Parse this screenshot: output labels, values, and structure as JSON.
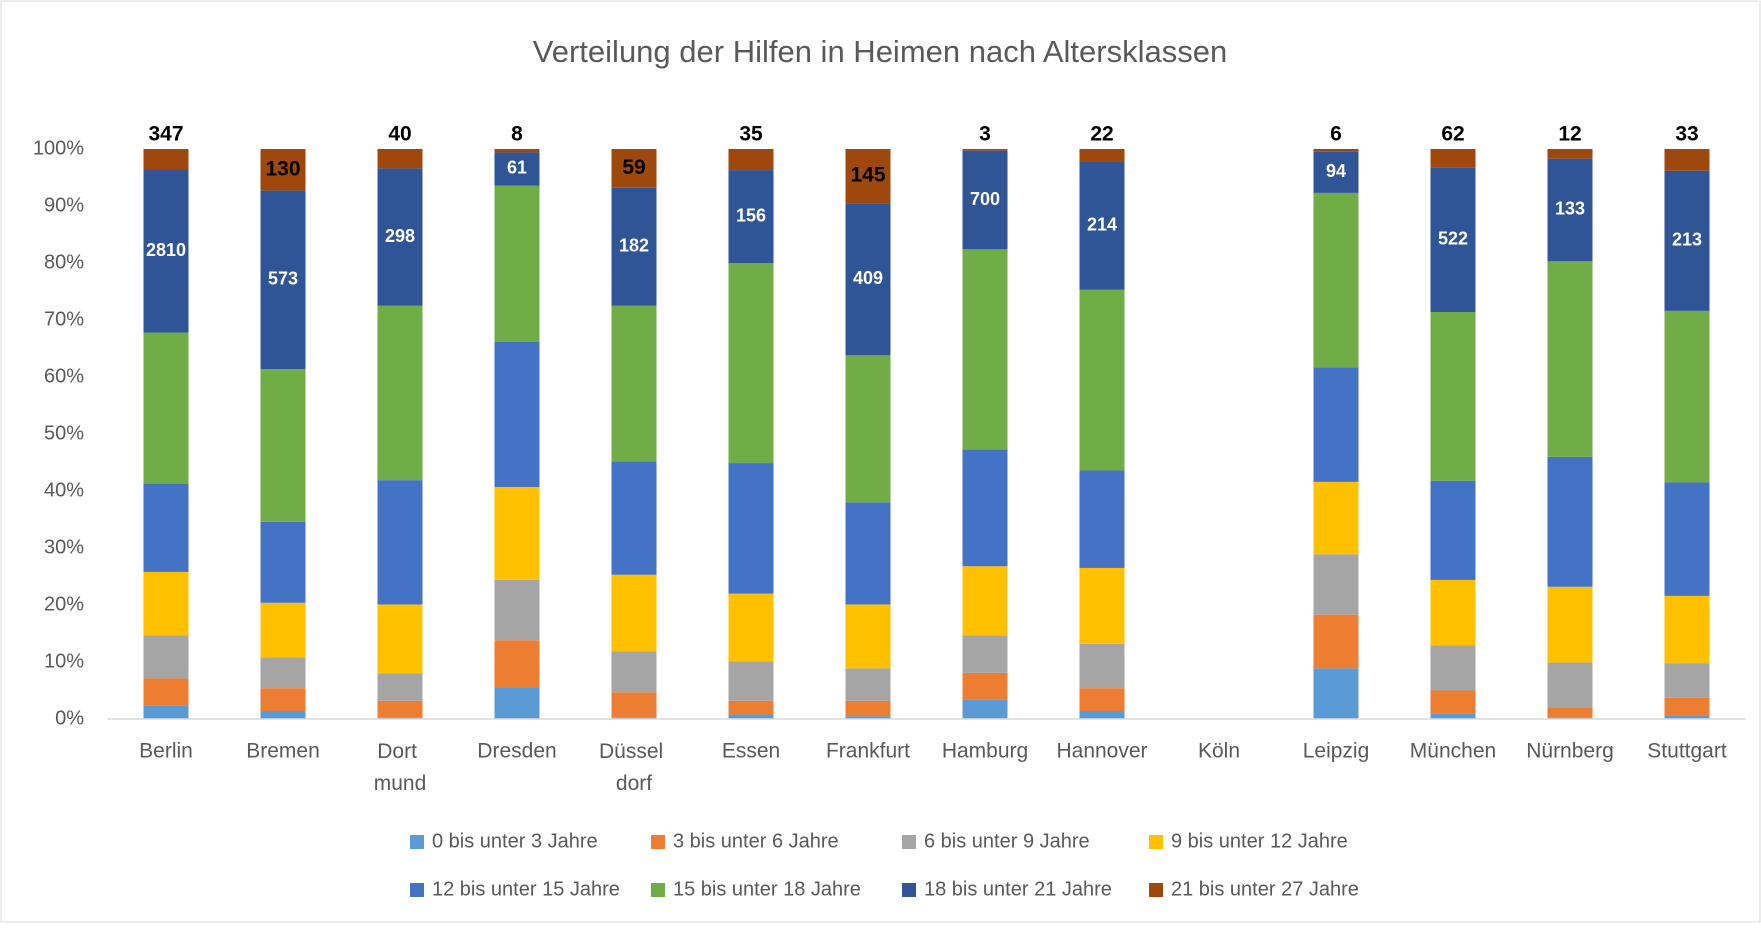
{
  "chart_data": {
    "type": "stacked_bar_percent",
    "title": "Verteilung der Hilfen in Heimen nach Altersklassen",
    "categories": [
      "Berlin",
      "Bremen",
      "Dort mund",
      "Dresden",
      "Düssel dorf",
      "Essen",
      "Frankfurt",
      "Hamburg",
      "Hannover",
      "Köln",
      "Leipzig",
      "München",
      "Nürnberg",
      "Stuttgart"
    ],
    "ylim": [
      0,
      100
    ],
    "yticks": [
      {
        "value": 0,
        "label": "0%"
      },
      {
        "value": 10,
        "label": "10%"
      },
      {
        "value": 20,
        "label": "20%"
      },
      {
        "value": 30,
        "label": "30%"
      },
      {
        "value": 40,
        "label": "40%"
      },
      {
        "value": 50,
        "label": "50%"
      },
      {
        "value": 60,
        "label": "60%"
      },
      {
        "value": 70,
        "label": "70%"
      },
      {
        "value": 80,
        "label": "80%"
      },
      {
        "value": 90,
        "label": "90%"
      },
      {
        "value": 100,
        "label": "100%"
      }
    ],
    "grid": false,
    "legend": "bottom",
    "series": [
      {
        "name": "0 bis unter 3 Jahre",
        "color": "#5b9bd5",
        "values": [
          2.3,
          1.4,
          0.2,
          5.6,
          0.2,
          0.8,
          0.5,
          3.4,
          1.4,
          null,
          8.9,
          1.0,
          0.2,
          0.6
        ]
      },
      {
        "name": "3 bis unter 6 Jahre",
        "color": "#ed7d31",
        "values": [
          4.8,
          4.0,
          3.0,
          8.2,
          4.5,
          2.4,
          2.7,
          4.7,
          4.0,
          null,
          9.4,
          4.0,
          1.8,
          3.1
        ]
      },
      {
        "name": "6 bis unter 9 Jahre",
        "color": "#a5a5a5",
        "values": [
          7.6,
          5.4,
          4.8,
          10.6,
          7.2,
          6.9,
          5.7,
          6.6,
          7.8,
          null,
          10.6,
          7.9,
          7.9,
          6.1
        ]
      },
      {
        "name": "9 bis unter 12 Jahre",
        "color": "#ffc000",
        "values": [
          11.1,
          9.6,
          12.1,
          16.3,
          13.4,
          11.9,
          11.2,
          12.1,
          13.3,
          null,
          12.7,
          11.5,
          13.3,
          11.8
        ]
      },
      {
        "name": "12 bis unter 15 Jahre",
        "color": "#4472c4",
        "values": [
          15.5,
          14.2,
          21.8,
          25.5,
          19.9,
          22.9,
          17.9,
          20.5,
          17.1,
          null,
          20.1,
          17.4,
          22.8,
          19.9
        ]
      },
      {
        "name": "15 bis unter 18 Jahre",
        "color": "#70ad47",
        "values": [
          26.5,
          26.8,
          30.6,
          27.4,
          27.3,
          35.1,
          25.8,
          35.1,
          31.7,
          null,
          30.6,
          29.6,
          34.3,
          30.1
        ]
      },
      {
        "name": "18 bis unter 21 Jahre",
        "color": "#2f5597",
        "values": [
          28.6,
          31.3,
          24.1,
          5.8,
          20.7,
          16.3,
          26.7,
          17.3,
          22.5,
          null,
          7.2,
          25.4,
          18.0,
          24.6
        ],
        "count_labels": [
          "2810",
          "573",
          "298",
          "61",
          "182",
          "156",
          "409",
          "700",
          "214",
          null,
          "94",
          "522",
          "133",
          "213"
        ]
      },
      {
        "name": "21 bis unter 27 Jahre",
        "color": "#9e480e",
        "values": [
          3.6,
          7.3,
          3.4,
          0.6,
          6.8,
          3.7,
          9.5,
          0.3,
          2.2,
          null,
          0.5,
          3.2,
          1.7,
          3.8
        ],
        "count_labels": [
          "347",
          "130",
          "40",
          "8",
          "59",
          "35",
          "145",
          "3",
          "22",
          null,
          "6",
          "62",
          "12",
          "33"
        ]
      }
    ]
  }
}
